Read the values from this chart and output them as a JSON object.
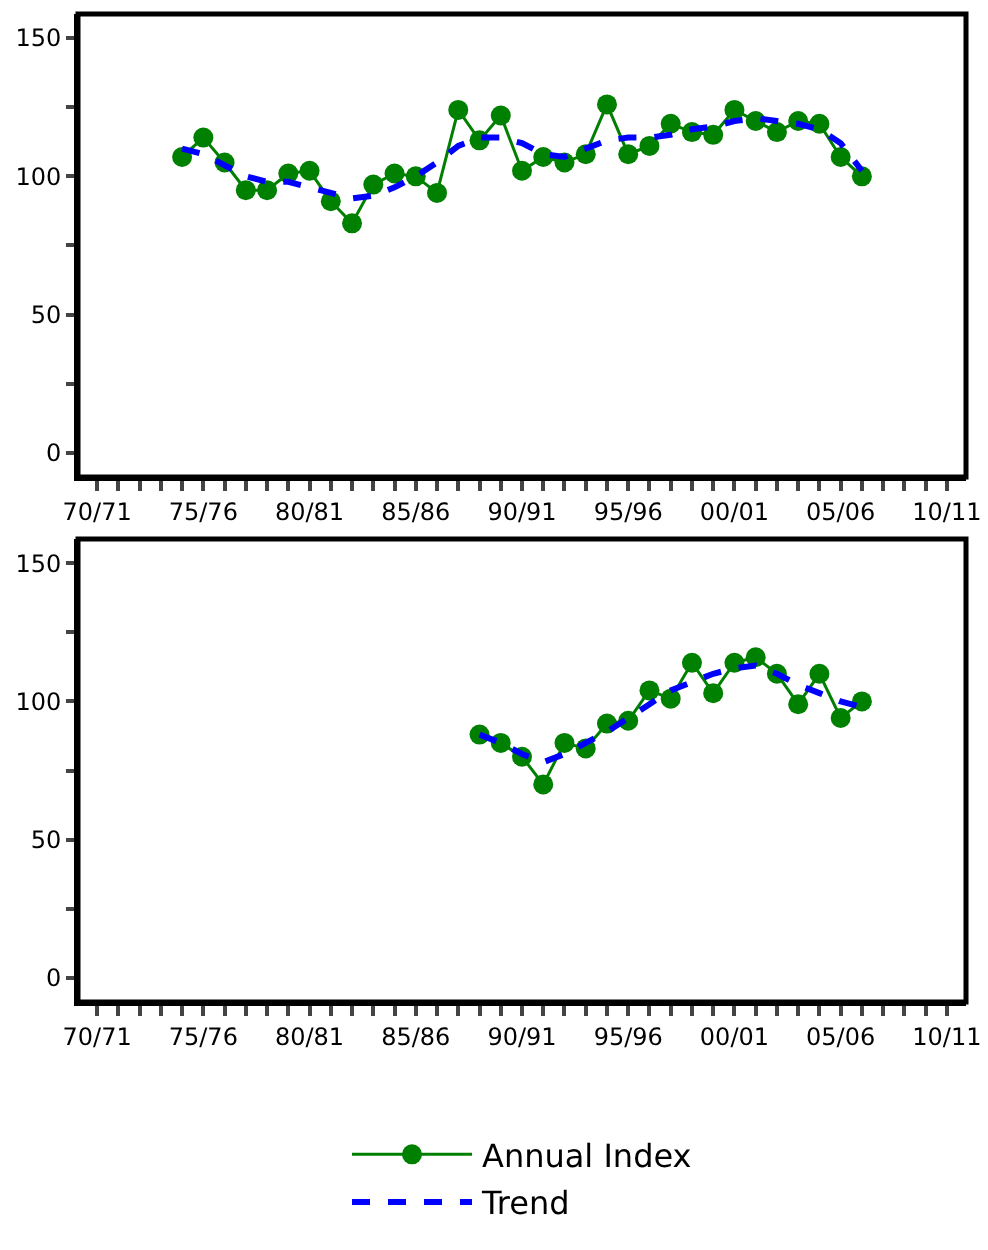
{
  "chart_data": [
    {
      "type": "line",
      "categories": [
        "70/71",
        null,
        null,
        null,
        null,
        "75/76",
        null,
        null,
        null,
        null,
        "80/81",
        null,
        null,
        null,
        null,
        "85/86",
        null,
        null,
        null,
        null,
        "90/91",
        null,
        null,
        null,
        null,
        "95/96",
        null,
        null,
        null,
        null,
        "00/01",
        null,
        null,
        null,
        null,
        "05/06",
        null,
        null,
        null,
        null,
        "10/11"
      ],
      "series": [
        {
          "color": "#008000",
          "marker": "circle",
          "line_style": "solid",
          "values": [
            null,
            null,
            null,
            null,
            107,
            114,
            105,
            95,
            95,
            101,
            102,
            91,
            83,
            97,
            101,
            100,
            94,
            124,
            113,
            122,
            102,
            107,
            105,
            108,
            126,
            108,
            111,
            119,
            116,
            115,
            124,
            120,
            116,
            120,
            119,
            107,
            100,
            null,
            null,
            null,
            null
          ]
        },
        {
          "color": "#0000ff",
          "marker": "none",
          "line_style": "dashed",
          "values": [
            null,
            null,
            null,
            null,
            110,
            108,
            104,
            100,
            98,
            98,
            96,
            94,
            92,
            93,
            96,
            100,
            105,
            111,
            114,
            114,
            112,
            108,
            107,
            110,
            113,
            114,
            114,
            115,
            117,
            118,
            120,
            121,
            120,
            119,
            117,
            112,
            102,
            null,
            null,
            null,
            null
          ]
        }
      ],
      "ylim": [
        -8.7,
        158.7
      ],
      "yticks": [
        0,
        {
          "value": 25,
          "label": null
        },
        50,
        {
          "value": 75,
          "label": null
        },
        100,
        {
          "value": 125,
          "label": null
        },
        150
      ]
    },
    {
      "type": "line",
      "categories": [
        "70/71",
        null,
        null,
        null,
        null,
        "75/76",
        null,
        null,
        null,
        null,
        "80/81",
        null,
        null,
        null,
        null,
        "85/86",
        null,
        null,
        null,
        null,
        "90/91",
        null,
        null,
        null,
        null,
        "95/96",
        null,
        null,
        null,
        null,
        "00/01",
        null,
        null,
        null,
        null,
        "05/06",
        null,
        null,
        null,
        null,
        "10/11"
      ],
      "series": [
        {
          "name": "Annual Index",
          "color": "#008000",
          "marker": "circle",
          "line_style": "solid",
          "values": [
            null,
            null,
            null,
            null,
            null,
            null,
            null,
            null,
            null,
            null,
            null,
            null,
            null,
            null,
            null,
            null,
            null,
            null,
            88,
            85,
            80,
            70,
            85,
            83,
            92,
            93,
            104,
            101,
            114,
            103,
            114,
            116,
            110,
            99,
            110,
            94,
            100,
            null,
            null,
            null,
            null
          ]
        },
        {
          "name": "Trend",
          "color": "#0000ff",
          "marker": "none",
          "line_style": "dashed",
          "values": [
            null,
            null,
            null,
            null,
            null,
            null,
            null,
            null,
            null,
            null,
            null,
            null,
            null,
            null,
            null,
            null,
            null,
            null,
            88,
            85,
            81,
            78,
            81,
            85,
            89,
            94,
            99,
            104,
            107,
            110,
            112,
            113,
            110,
            106,
            103,
            100,
            98,
            null,
            null,
            null,
            null
          ]
        }
      ],
      "ylim": [
        -8.7,
        158.7
      ],
      "yticks": [
        0,
        {
          "value": 25,
          "label": null
        },
        50,
        {
          "value": 75,
          "label": null
        },
        100,
        {
          "value": 125,
          "label": null
        },
        150
      ],
      "legend": "bottom"
    }
  ]
}
